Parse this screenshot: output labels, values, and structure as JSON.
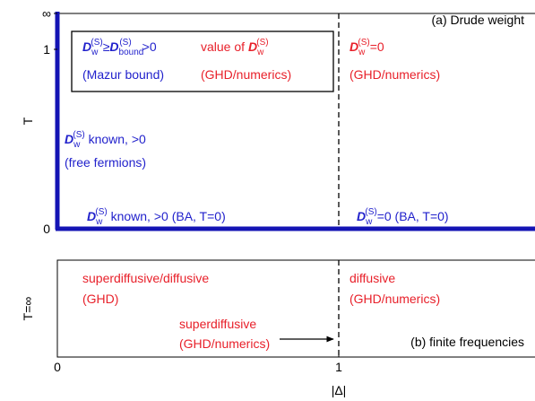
{
  "panel_a": {
    "label": "(a) Drude weight",
    "y_title": "T",
    "y_ticks": [
      "∞",
      "1",
      "0"
    ],
    "box_left": [
      [
        "D",
        "w",
        "(S)",
        "≥",
        "D",
        "bound",
        "(S)",
        ">0"
      ],
      [
        "(Mazur bound)"
      ]
    ],
    "box_right": [
      [
        "value of ",
        "D",
        "w",
        "(S)"
      ],
      [
        "(GHD/numerics)"
      ]
    ],
    "right_top": [
      [
        "D",
        "w",
        "(S)",
        "=0"
      ],
      [
        "(GHD/numerics)"
      ]
    ],
    "left_edge": [
      [
        "D",
        "w",
        "(S)",
        " known, >0"
      ],
      [
        "(free fermions)"
      ]
    ],
    "bottom_left": [
      "D",
      "w",
      "(S)",
      " known, >0 (BA, T=0)"
    ],
    "bottom_right": [
      "D",
      "w",
      "(S)",
      "=0 (BA, T=0)"
    ]
  },
  "panel_b": {
    "label": "(b) finite frequencies",
    "y_title": "T=∞",
    "left": [
      "superdiffusive/diffusive",
      "(GHD)"
    ],
    "right": [
      "diffusive",
      "(GHD/numerics)"
    ],
    "middle": [
      "superdiffusive",
      "(GHD/numerics)"
    ]
  },
  "x_axis": {
    "title": "|Δ|",
    "ticks": [
      "0",
      "1"
    ]
  }
}
